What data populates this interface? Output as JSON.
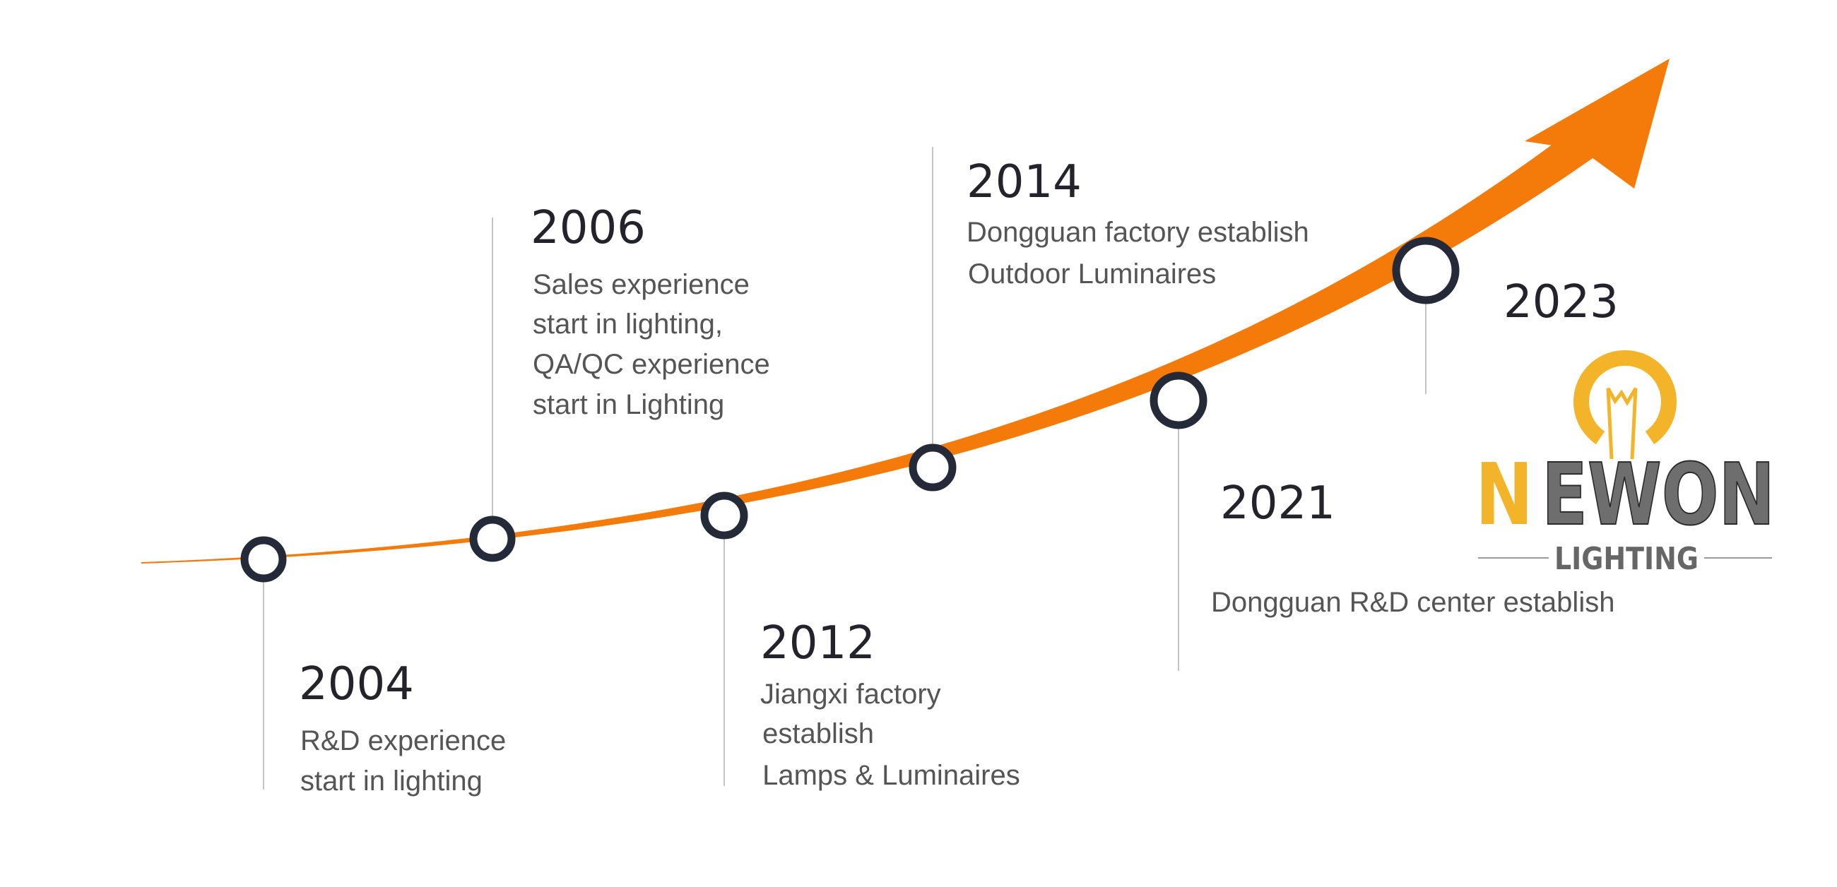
{
  "colors": {
    "curve": "#f47a0a",
    "node": "#252a38",
    "logo_yellow": "#f3b42a",
    "logo_gray": "#6e6e6e"
  },
  "milestones": [
    {
      "year": "2004",
      "lines": [
        "R&D experience",
        "start in lighting"
      ]
    },
    {
      "year": "2006",
      "lines": [
        "Sales experience",
        "start in lighting,",
        "QA/QC experience",
        "start in Lighting"
      ]
    },
    {
      "year": "2012",
      "lines": [
        "Jiangxi factory",
        " establish",
        " Lamps & Luminaires"
      ]
    },
    {
      "year": "2014",
      "lines": [
        "Dongguan factory establish",
        "Outdoor Luminaires"
      ]
    },
    {
      "year": "2021",
      "lines": [
        "Dongguan R&D center establish"
      ]
    },
    {
      "year": "2023",
      "lines": []
    }
  ],
  "logo": {
    "first_letter": "N",
    "rest": "EWON",
    "sub": "LIGHTING",
    "icon": "lightbulb-icon"
  }
}
